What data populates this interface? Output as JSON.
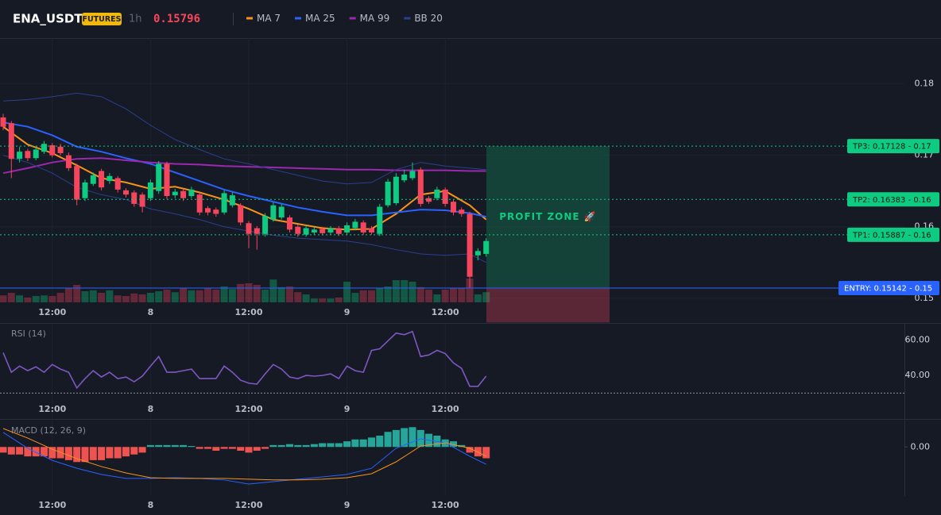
{
  "header": {
    "symbol": "ENA_USDT",
    "badge": "FUTURES",
    "interval": "1h",
    "price": "0.15796"
  },
  "chart_data": [
    {
      "type": "candlestick",
      "xlim": [
        -0.388,
        110.1
      ],
      "xticks": [
        {
          "value": 6,
          "label": "12:00"
        },
        {
          "value": 18,
          "label": "8"
        },
        {
          "value": 30,
          "label": "12:00"
        },
        {
          "value": 42,
          "label": "9"
        },
        {
          "value": 54,
          "label": "12:00"
        }
      ],
      "ylim": [
        0.1492,
        0.1864
      ],
      "yticks": [
        0.18,
        0.17,
        0.16,
        0.15
      ],
      "grid": true,
      "up_color": "#0ecb81",
      "down_color": "#f6465d",
      "open": [
        0.1753,
        0.1745,
        0.1695,
        0.1706,
        0.1696,
        0.1705,
        0.1714,
        0.1712,
        0.17,
        0.1685,
        0.164,
        0.166,
        0.1678,
        0.1664,
        0.1668,
        0.1651,
        0.1648,
        0.1645,
        0.164,
        0.165,
        0.1688,
        0.1644,
        0.165,
        0.1643,
        0.1645,
        0.1626,
        0.1624,
        0.162,
        0.163,
        0.163,
        0.1605,
        0.1598,
        0.159,
        0.161,
        0.1613,
        0.1613,
        0.16,
        0.1589,
        0.1592,
        0.1597,
        0.1592,
        0.1598,
        0.1592,
        0.1598,
        0.1606,
        0.1598,
        0.159,
        0.163,
        0.1633,
        0.1665,
        0.1668,
        0.168,
        0.164,
        0.164,
        0.1652,
        0.1635,
        0.1624,
        0.1618,
        0.156,
        0.1562
      ],
      "high": [
        0.1758,
        0.1748,
        0.1712,
        0.1709,
        0.1712,
        0.172,
        0.1717,
        0.1716,
        0.1704,
        0.1688,
        0.1666,
        0.1676,
        0.1681,
        0.1675,
        0.1671,
        0.1654,
        0.1651,
        0.1648,
        0.1666,
        0.1692,
        0.1691,
        0.1653,
        0.1653,
        0.1656,
        0.1648,
        0.1629,
        0.1627,
        0.1651,
        0.1648,
        0.1633,
        0.1608,
        0.1601,
        0.1619,
        0.1634,
        0.1632,
        0.1616,
        0.1603,
        0.1602,
        0.1599,
        0.16,
        0.1601,
        0.1601,
        0.1606,
        0.1611,
        0.1609,
        0.1601,
        0.1632,
        0.1667,
        0.1675,
        0.168,
        0.169,
        0.1683,
        0.1643,
        0.1656,
        0.1655,
        0.1638,
        0.1627,
        0.1621,
        0.157,
        0.1584
      ],
      "low": [
        0.1735,
        0.1668,
        0.169,
        0.1692,
        0.1693,
        0.1702,
        0.1697,
        0.17,
        0.1678,
        0.163,
        0.1636,
        0.1657,
        0.1651,
        0.166,
        0.1648,
        0.1641,
        0.1628,
        0.162,
        0.1636,
        0.1646,
        0.1639,
        0.164,
        0.1636,
        0.164,
        0.1616,
        0.1616,
        0.1614,
        0.1617,
        0.1627,
        0.1602,
        0.157,
        0.1568,
        0.1586,
        0.1607,
        0.161,
        0.1592,
        0.1586,
        0.1586,
        0.1589,
        0.1588,
        0.1589,
        0.1587,
        0.1589,
        0.1595,
        0.1589,
        0.1589,
        0.1587,
        0.1627,
        0.163,
        0.1662,
        0.1665,
        0.1628,
        0.1632,
        0.1637,
        0.1628,
        0.1616,
        0.1614,
        0.1515,
        0.1553,
        0.1558
      ],
      "close": [
        0.174,
        0.1695,
        0.1705,
        0.1696,
        0.1708,
        0.1716,
        0.17,
        0.1703,
        0.1682,
        0.1638,
        0.1662,
        0.1672,
        0.1655,
        0.1671,
        0.1652,
        0.1645,
        0.1632,
        0.1628,
        0.1662,
        0.1688,
        0.1643,
        0.1649,
        0.164,
        0.1652,
        0.162,
        0.162,
        0.1618,
        0.1647,
        0.1644,
        0.1606,
        0.159,
        0.159,
        0.1615,
        0.163,
        0.1628,
        0.1596,
        0.159,
        0.1598,
        0.1596,
        0.1591,
        0.1598,
        0.159,
        0.1602,
        0.1607,
        0.1592,
        0.1592,
        0.1628,
        0.1663,
        0.167,
        0.1673,
        0.1678,
        0.1632,
        0.1635,
        0.1652,
        0.1632,
        0.162,
        0.1618,
        0.153,
        0.1566,
        0.158
      ],
      "volume": [
        22,
        30,
        22,
        15,
        20,
        22,
        20,
        30,
        45,
        55,
        35,
        38,
        30,
        38,
        22,
        20,
        28,
        25,
        30,
        35,
        40,
        32,
        45,
        38,
        38,
        45,
        40,
        50,
        42,
        58,
        60,
        55,
        40,
        72,
        48,
        50,
        32,
        25,
        12,
        12,
        12,
        15,
        65,
        30,
        38,
        38,
        45,
        50,
        70,
        70,
        65,
        48,
        40,
        25,
        40,
        45,
        45,
        75,
        25,
        32
      ],
      "volume_ylim": [
        0,
        100
      ],
      "series": [
        {
          "name": "MA 7",
          "color": "#f7931a",
          "x": [
            0,
            3,
            6,
            9,
            12,
            15,
            18,
            21,
            24,
            27,
            30,
            33,
            36,
            39,
            42,
            45,
            48,
            51,
            54,
            57,
            59
          ],
          "values": [
            0.174,
            0.1715,
            0.1703,
            0.1686,
            0.1668,
            0.1662,
            0.1653,
            0.1656,
            0.1648,
            0.1638,
            0.1625,
            0.161,
            0.1604,
            0.1598,
            0.1596,
            0.1597,
            0.1618,
            0.1645,
            0.165,
            0.163,
            0.161
          ]
        },
        {
          "name": "MA 25",
          "color": "#2962ff",
          "x": [
            0,
            3,
            6,
            9,
            12,
            15,
            18,
            21,
            24,
            27,
            30,
            33,
            36,
            39,
            42,
            45,
            48,
            51,
            54,
            57,
            59
          ],
          "values": [
            0.1746,
            0.174,
            0.1728,
            0.1712,
            0.1705,
            0.1696,
            0.1688,
            0.1676,
            0.1664,
            0.1652,
            0.1643,
            0.1635,
            0.1627,
            0.1621,
            0.1616,
            0.1616,
            0.162,
            0.1624,
            0.1623,
            0.1619,
            0.1614
          ]
        },
        {
          "name": "MA 99",
          "color": "#9c27b0",
          "x": [
            0,
            3,
            6,
            9,
            12,
            15,
            18,
            21,
            24,
            27,
            30,
            33,
            36,
            39,
            42,
            45,
            48,
            51,
            54,
            57,
            59
          ],
          "values": [
            0.1675,
            0.1682,
            0.169,
            0.1695,
            0.1696,
            0.1693,
            0.169,
            0.1688,
            0.1687,
            0.1685,
            0.1684,
            0.1683,
            0.1682,
            0.1681,
            0.168,
            0.168,
            0.1679,
            0.1679,
            0.1679,
            0.1678,
            0.1678
          ]
        },
        {
          "name": "BB 20",
          "color": "#2a3f8f",
          "x": [
            0,
            3,
            6,
            9,
            12,
            15,
            18,
            21,
            24,
            27,
            30,
            33,
            36,
            39,
            42,
            45,
            48,
            51,
            54,
            57,
            59
          ],
          "values": [
            0.1776,
            0.1778,
            0.1782,
            0.1787,
            0.1782,
            0.1765,
            0.1742,
            0.1722,
            0.1708,
            0.1695,
            0.1688,
            0.168,
            0.1672,
            0.1664,
            0.166,
            0.1662,
            0.168,
            0.169,
            0.1685,
            0.1682,
            0.168
          ],
          "lower_values": [
            0.17,
            0.169,
            0.1675,
            0.1655,
            0.1645,
            0.1638,
            0.1625,
            0.1618,
            0.161,
            0.16,
            0.1594,
            0.1588,
            0.1584,
            0.1582,
            0.158,
            0.1575,
            0.1568,
            0.1562,
            0.156,
            0.1562,
            0.155
          ]
        }
      ],
      "levels": [
        {
          "label": "TP3: 0.17128 - 0.17",
          "value": 0.17128,
          "color": "#0ecb81"
        },
        {
          "label": "TP2: 0.16383 - 0.16",
          "value": 0.16383,
          "color": "#0ecb81"
        },
        {
          "label": "TP1: 0.15887 - 0.16",
          "value": 0.15887,
          "color": "#0ecb81"
        },
        {
          "label": "ENTRY: 0.15142 - 0.15",
          "value": 0.15142,
          "color": "#2962ff"
        }
      ],
      "zone": {
        "label": "PROFIT ZONE 🚀",
        "x": [
          59.03,
          74.08
        ],
        "top": 0.17128,
        "entry": 0.15142,
        "stop": 0.1466
      }
    },
    {
      "type": "line",
      "title": "RSI (14)",
      "color": "#7e57c2",
      "xlim": [
        -0.388,
        110.1
      ],
      "xticks": [
        {
          "value": 6,
          "label": "12:00"
        },
        {
          "value": 18,
          "label": "8"
        },
        {
          "value": 30,
          "label": "12:00"
        },
        {
          "value": 42,
          "label": "9"
        },
        {
          "value": 54,
          "label": "12:00"
        }
      ],
      "ylim": [
        15.3,
        69.3
      ],
      "yticks": [
        {
          "value": 60,
          "label": "60.00"
        },
        {
          "value": 40,
          "label": "40.00"
        }
      ],
      "reference": 30,
      "values": [
        52.9,
        41.8,
        45.3,
        42.7,
        44.9,
        41.8,
        46.2,
        43.6,
        41.8,
        32.9,
        38.2,
        42.7,
        39.1,
        41.8,
        38.2,
        39.1,
        36.4,
        39.6,
        45.3,
        50.7,
        41.8,
        41.8,
        42.7,
        43.6,
        38.2,
        38.2,
        38.2,
        45.3,
        41.8,
        37.3,
        35.6,
        35.1,
        40.9,
        46.2,
        43.6,
        39.1,
        38.2,
        40.0,
        39.6,
        40.0,
        40.9,
        38.2,
        45.3,
        42.7,
        41.8,
        54.2,
        55.1,
        59.6,
        64.0,
        63.1,
        64.9,
        50.7,
        51.6,
        54.2,
        52.4,
        47.1,
        44.0,
        33.8,
        33.8,
        39.6
      ]
    },
    {
      "type": "macd",
      "title": "MACD (12, 26, 9)",
      "xlim": [
        -0.388,
        110.1
      ],
      "xticks": [
        {
          "value": 6,
          "label": "12:00"
        },
        {
          "value": 18,
          "label": "8"
        },
        {
          "value": 30,
          "label": "12:00"
        },
        {
          "value": 42,
          "label": "9"
        },
        {
          "value": 54,
          "label": "12:00"
        }
      ],
      "ylim": [
        -0.0026,
        0.0014
      ],
      "yticks": [
        {
          "value": 0,
          "label": "0.00"
        }
      ],
      "up_color": "#26a69a",
      "down_color": "#ef5350",
      "histogram": [
        -0.0003,
        -0.0004,
        -0.0004,
        -0.0005,
        -0.0005,
        -0.0005,
        -0.0006,
        -0.0006,
        -0.0007,
        -0.0008,
        -0.0008,
        -0.0007,
        -0.0007,
        -0.0006,
        -0.0006,
        -0.0005,
        -0.0004,
        -0.0003,
        0.0001,
        0.0001,
        0.0001,
        0.0001,
        0.0001,
        5e-05,
        -0.0001,
        -0.0001,
        -0.0002,
        -0.0001,
        -0.0001,
        -0.0002,
        -0.0003,
        -0.0002,
        -0.0001,
        0.0001,
        0.0001,
        0.00015,
        0.0001,
        0.0001,
        0.00015,
        0.0002,
        0.0002,
        0.0002,
        0.0003,
        0.0004,
        0.0004,
        0.0005,
        0.0006,
        0.0008,
        0.0009,
        0.001,
        0.00105,
        0.0009,
        0.0007,
        0.0006,
        0.0004,
        0.0003,
        0.0001,
        -0.0003,
        -0.0005,
        -0.0006
      ],
      "series": [
        {
          "color": "#2962ff",
          "x": [
            0,
            3,
            6,
            9,
            12,
            15,
            18,
            21,
            24,
            27,
            30,
            33,
            36,
            39,
            42,
            45,
            48,
            51,
            54,
            57,
            59
          ],
          "values": [
            0.00077,
            -7e-05,
            -0.00071,
            -0.00113,
            -0.00146,
            -0.00167,
            -0.00167,
            -0.00163,
            -0.00167,
            -0.00175,
            -0.00197,
            -0.00184,
            -0.00171,
            -0.00159,
            -0.00146,
            -0.00113,
            -7e-05,
            0.00043,
            0.00022,
            -0.00049,
            -0.00092
          ]
        },
        {
          "color": "#f7931a",
          "x": [
            0,
            3,
            6,
            9,
            12,
            15,
            18,
            21,
            24,
            27,
            30,
            33,
            36,
            39,
            42,
            45,
            48,
            51,
            54,
            57,
            59
          ],
          "values": [
            0.00098,
            0.00047,
            -0.00012,
            -0.00062,
            -0.00104,
            -0.00138,
            -0.00163,
            -0.00167,
            -0.00167,
            -0.00167,
            -0.00171,
            -0.00175,
            -0.00175,
            -0.00171,
            -0.00163,
            -0.00142,
            -0.00079,
            5e-05,
            0.00022,
            -7e-05,
            -0.00049
          ]
        }
      ]
    }
  ]
}
